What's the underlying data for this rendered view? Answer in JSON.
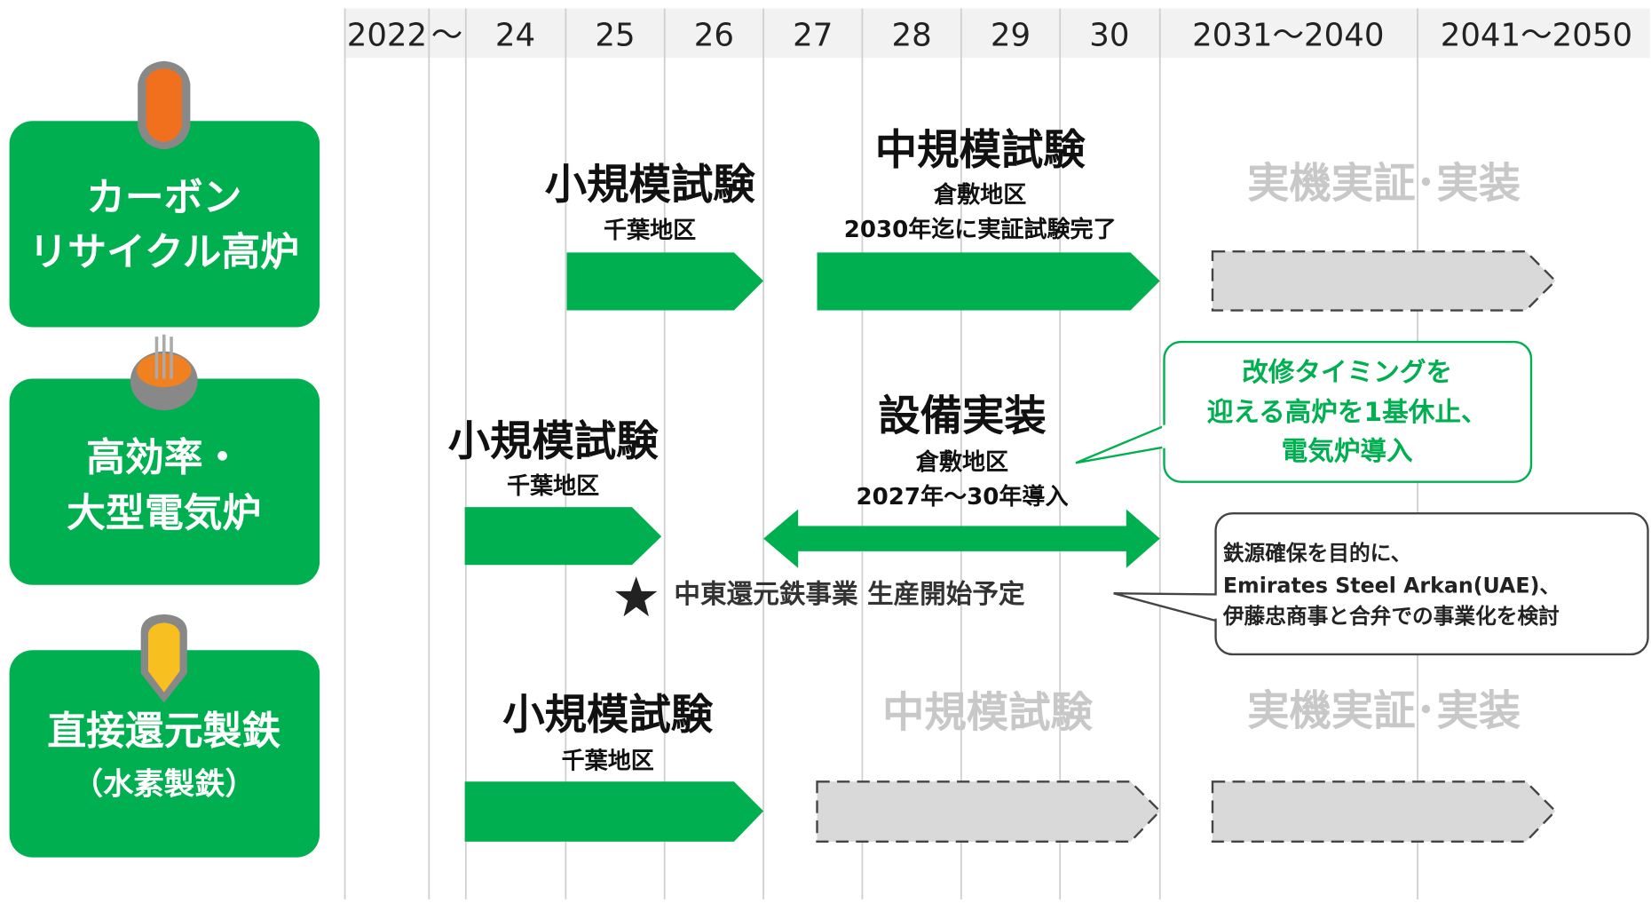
{
  "header": {
    "columns": [
      "2022",
      "～",
      "24",
      "25",
      "26",
      "27",
      "28",
      "29",
      "30",
      "2031～2040",
      "2041～2050"
    ]
  },
  "rows": [
    {
      "label": [
        "カーボン",
        "リサイクル高炉"
      ],
      "phases": [
        {
          "title": "小規模試験",
          "lines": [
            "千葉地区"
          ]
        },
        {
          "title": "中規模試験",
          "lines": [
            "倉敷地区",
            "2030年迄に実証試験完了"
          ]
        },
        {
          "title": "実機実証･実装"
        }
      ]
    },
    {
      "label": [
        "高効率・",
        "大型電気炉"
      ],
      "phases": [
        {
          "title": "小規模試験",
          "lines": [
            "千葉地区"
          ]
        },
        {
          "title": "設備実装",
          "lines": [
            "倉敷地区",
            "2027年～30年導入"
          ]
        }
      ],
      "callout": [
        "改修タイミングを",
        "迎える高炉を1基休止、",
        "電気炉導入"
      ],
      "note": "中東還元鉄事業 生産開始予定",
      "note_callout": [
        "鉄源確保を目的に、",
        "Emirates Steel Arkan(UAE)、",
        "伊藤忠商事と合弁での事業化を検討"
      ]
    },
    {
      "label": [
        "直接還元製鉄",
        "（水素製鉄）"
      ],
      "phases": [
        {
          "title": "小規模試験",
          "lines": [
            "千葉地区"
          ]
        },
        {
          "title": "中規模試験"
        },
        {
          "title": "実機実証･実装"
        }
      ]
    }
  ]
}
